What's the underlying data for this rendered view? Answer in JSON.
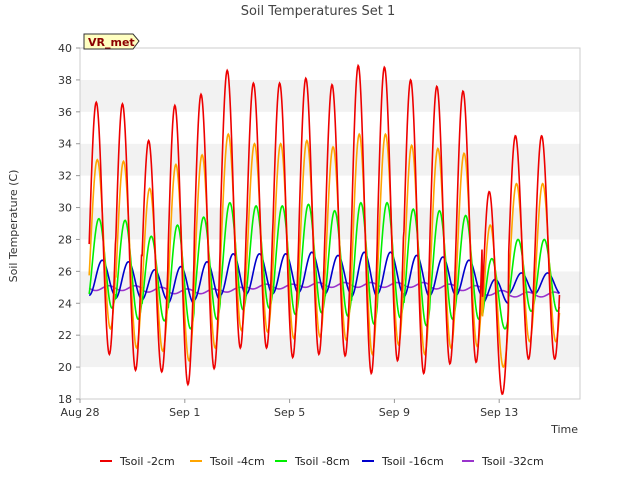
{
  "chart_data": {
    "type": "line",
    "title": "Soil Temperatures Set 1",
    "xlabel": "Time",
    "ylabel": "Soil Temperature (C)",
    "ylim": [
      18,
      40
    ],
    "yticks": [
      18,
      20,
      22,
      24,
      26,
      28,
      30,
      32,
      34,
      36,
      38,
      40
    ],
    "xlim": [
      "Aug 28",
      "Sep 15"
    ],
    "xticks": [
      {
        "label": "Aug 28",
        "day": 0
      },
      {
        "label": "Sep 1",
        "day": 4
      },
      {
        "label": "Sep 5",
        "day": 8
      },
      {
        "label": "Sep 9",
        "day": 12
      },
      {
        "label": "Sep 13",
        "day": 16
      }
    ],
    "grid": "horizontal bands",
    "legend_position": "bottom",
    "annotation": "VR_met",
    "series": [
      {
        "name": "Tsoil -2cm",
        "color": "#ee0000",
        "daily_max": [
          36.6,
          36.5,
          34.2,
          36.4,
          37.1,
          38.6,
          37.8,
          37.8,
          38.1,
          37.7,
          38.9,
          38.8,
          38.0,
          37.6,
          37.3,
          31.0,
          34.5
        ],
        "daily_min": [
          20.8,
          19.8,
          19.7,
          18.9,
          19.9,
          21.2,
          21.2,
          20.6,
          20.8,
          20.7,
          19.6,
          20.4,
          19.6,
          20.2,
          20.3,
          18.3,
          20.5
        ]
      },
      {
        "name": "Tsoil -4cm",
        "color": "#ffa500",
        "daily_max": [
          33.0,
          32.9,
          31.2,
          32.7,
          33.3,
          34.6,
          34.0,
          34.0,
          34.2,
          33.8,
          34.6,
          34.6,
          33.9,
          33.7,
          33.4,
          28.9,
          31.5
        ],
        "daily_min": [
          22.4,
          21.2,
          21.0,
          20.4,
          21.2,
          22.3,
          22.2,
          21.8,
          21.9,
          21.7,
          20.8,
          21.4,
          20.8,
          21.2,
          21.3,
          20.0,
          21.6
        ]
      },
      {
        "name": "Tsoil -8cm",
        "color": "#00ee00",
        "daily_max": [
          29.3,
          29.2,
          28.2,
          28.9,
          29.4,
          30.3,
          30.1,
          30.1,
          30.2,
          29.8,
          30.3,
          30.3,
          29.9,
          29.8,
          29.5,
          26.8,
          28.0
        ],
        "daily_min": [
          23.7,
          23.0,
          22.9,
          22.4,
          23.0,
          23.6,
          23.7,
          23.3,
          23.4,
          23.2,
          22.7,
          23.1,
          22.6,
          23.0,
          23.0,
          22.4,
          23.5
        ]
      },
      {
        "name": "Tsoil -16cm",
        "color": "#0000cc",
        "daily_max": [
          26.7,
          26.6,
          26.1,
          26.3,
          26.6,
          27.1,
          27.1,
          27.1,
          27.2,
          27.0,
          27.2,
          27.2,
          27.0,
          26.9,
          26.7,
          25.5,
          25.9
        ],
        "daily_min": [
          24.5,
          24.3,
          24.2,
          24.0,
          24.2,
          24.5,
          24.6,
          24.6,
          24.7,
          24.6,
          24.4,
          24.6,
          24.4,
          24.5,
          24.5,
          24.0,
          24.6
        ]
      },
      {
        "name": "Tsoil -32cm",
        "color": "#9933cc",
        "daily_max": [
          25.1,
          25.1,
          25.0,
          24.9,
          24.9,
          25.0,
          25.2,
          25.2,
          25.3,
          25.3,
          25.3,
          25.3,
          25.3,
          25.2,
          25.1,
          24.8,
          24.7
        ],
        "daily_min": [
          24.8,
          24.8,
          24.7,
          24.6,
          24.6,
          24.7,
          24.9,
          24.9,
          25.0,
          25.0,
          25.0,
          25.0,
          25.0,
          24.9,
          24.8,
          24.5,
          24.4
        ]
      }
    ]
  }
}
